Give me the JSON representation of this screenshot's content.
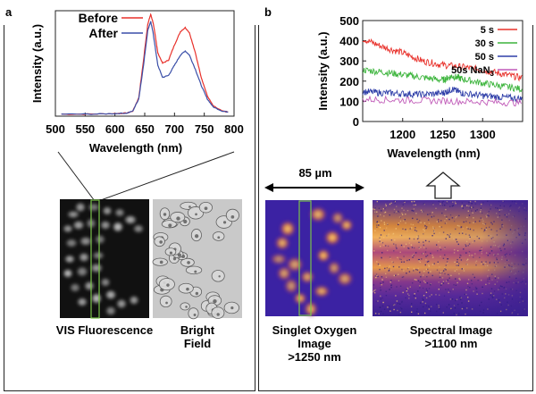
{
  "panel_a": {
    "label": "a",
    "chart_data": {
      "type": "line",
      "xlabel": "Wavelength (nm)",
      "ylabel": "Intensity (a.u.)",
      "xlim": [
        500,
        800
      ],
      "xticks": [
        500,
        550,
        600,
        650,
        700,
        750,
        800
      ],
      "legend": "top-left",
      "series": [
        {
          "name": "Before",
          "color": "#e8302a",
          "x": [
            510,
            560,
            600,
            620,
            630,
            640,
            648,
            655,
            660,
            664,
            668,
            672,
            680,
            690,
            700,
            710,
            718,
            725,
            735,
            745,
            755,
            765,
            780,
            790
          ],
          "y": [
            0.02,
            0.02,
            0.025,
            0.03,
            0.05,
            0.18,
            0.55,
            0.9,
            1.0,
            0.92,
            0.78,
            0.62,
            0.52,
            0.55,
            0.7,
            0.83,
            0.87,
            0.82,
            0.62,
            0.38,
            0.2,
            0.1,
            0.05,
            0.04
          ]
        },
        {
          "name": "After",
          "color": "#3a4fa8",
          "x": [
            510,
            560,
            600,
            620,
            630,
            640,
            648,
            655,
            660,
            664,
            668,
            672,
            680,
            690,
            700,
            710,
            718,
            725,
            735,
            745,
            755,
            765,
            780,
            790
          ],
          "y": [
            0.02,
            0.02,
            0.025,
            0.03,
            0.05,
            0.17,
            0.5,
            0.84,
            0.93,
            0.82,
            0.66,
            0.5,
            0.38,
            0.4,
            0.5,
            0.6,
            0.64,
            0.6,
            0.46,
            0.3,
            0.17,
            0.09,
            0.05,
            0.04
          ]
        }
      ]
    },
    "captions": {
      "vis": "VIS Fluorescence",
      "bright_1": "Bright",
      "bright_2": "Field"
    }
  },
  "panel_b": {
    "label": "b",
    "scale_bar": "85 µm",
    "chart_data": {
      "type": "line",
      "xlabel": "Wavelength (nm)",
      "ylabel": "Intensity (a.u.)",
      "xlim": [
        1150,
        1350
      ],
      "ylim": [
        0,
        500
      ],
      "xticks": [
        1200,
        1250,
        1300
      ],
      "yticks": [
        0,
        100,
        200,
        300,
        400,
        500
      ],
      "legend": "top-right",
      "series": [
        {
          "name": "5 s",
          "color": "#e8302a",
          "x": [
            1150,
            1175,
            1200,
            1225,
            1250,
            1275,
            1300,
            1325,
            1350
          ],
          "y": [
            410,
            370,
            340,
            300,
            280,
            270,
            255,
            235,
            215
          ]
        },
        {
          "name": "30 s",
          "color": "#3bb43b",
          "x": [
            1150,
            1175,
            1200,
            1225,
            1250,
            1262,
            1275,
            1300,
            1325,
            1350
          ],
          "y": [
            255,
            245,
            232,
            218,
            205,
            225,
            210,
            190,
            175,
            160
          ]
        },
        {
          "name": "50 s",
          "color": "#2e3ea8",
          "x": [
            1150,
            1175,
            1200,
            1225,
            1250,
            1262,
            1275,
            1300,
            1325,
            1350
          ],
          "y": [
            148,
            142,
            138,
            134,
            140,
            160,
            140,
            128,
            120,
            112
          ]
        },
        {
          "name": "50s NaN",
          "name_sub": "3",
          "color": "#c05ab8",
          "x": [
            1150,
            1200,
            1250,
            1300,
            1350
          ],
          "y": [
            110,
            106,
            102,
            97,
            92
          ]
        }
      ]
    },
    "captions": {
      "singlet_1": "Singlet Oxygen",
      "singlet_2": "Image",
      "singlet_3": ">1250 nm",
      "spectral_1": "Spectral Image",
      "spectral_2": ">1100 nm"
    }
  }
}
